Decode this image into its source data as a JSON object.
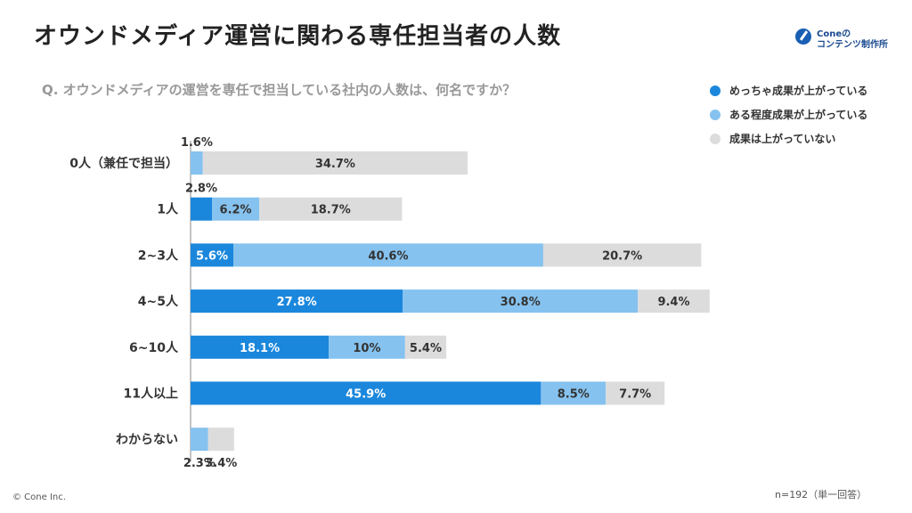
{
  "title": "オウンドメディア運営に関わる専任担当者の人数",
  "logo": {
    "line1": "Coneの",
    "line2": "コンテンツ制作所"
  },
  "question": "Q.  オウンドメディアの運営を専任で担当している社内の人数は、何名ですか？",
  "legend": [
    {
      "label": "めっちゃ成果が上がっている",
      "color": "#1a87dc"
    },
    {
      "label": "ある程度成果が上がっている",
      "color": "#85c2ef"
    },
    {
      "label": "成果は上がっていない",
      "color": "#dcdcdc"
    }
  ],
  "footer": {
    "copyright": "© Cone Inc.",
    "note": "n=192（単一回答）"
  },
  "chart_data": {
    "type": "bar",
    "orientation": "horizontal",
    "stacked": true,
    "categories": [
      "0人（兼任で担当）",
      "1人",
      "2~3人",
      "4~5人",
      "6~10人",
      "11人以上",
      "わからない"
    ],
    "series": [
      {
        "name": "めっちゃ成果が上がっている",
        "values": [
          0,
          2.8,
          5.6,
          27.8,
          18.1,
          45.9,
          0
        ],
        "labels": [
          "",
          "2.8%",
          "5.6%",
          "27.8%",
          "18.1%",
          "45.9%",
          ""
        ]
      },
      {
        "name": "ある程度成果が上がっている",
        "values": [
          1.6,
          6.2,
          40.6,
          30.8,
          10,
          8.5,
          2.3
        ],
        "labels": [
          "1.6%",
          "6.2%",
          "40.6%",
          "30.8%",
          "10%",
          "8.5%",
          "2.3%"
        ]
      },
      {
        "name": "成果は上がっていない",
        "values": [
          34.7,
          18.7,
          20.7,
          9.4,
          5.4,
          7.7,
          3.4
        ],
        "labels": [
          "34.7%",
          "18.7%",
          "20.7%",
          "9.4%",
          "5.4%",
          "7.7%",
          "3.4%"
        ]
      }
    ],
    "unit": "%",
    "grid": false,
    "legend_position": "top-right"
  }
}
